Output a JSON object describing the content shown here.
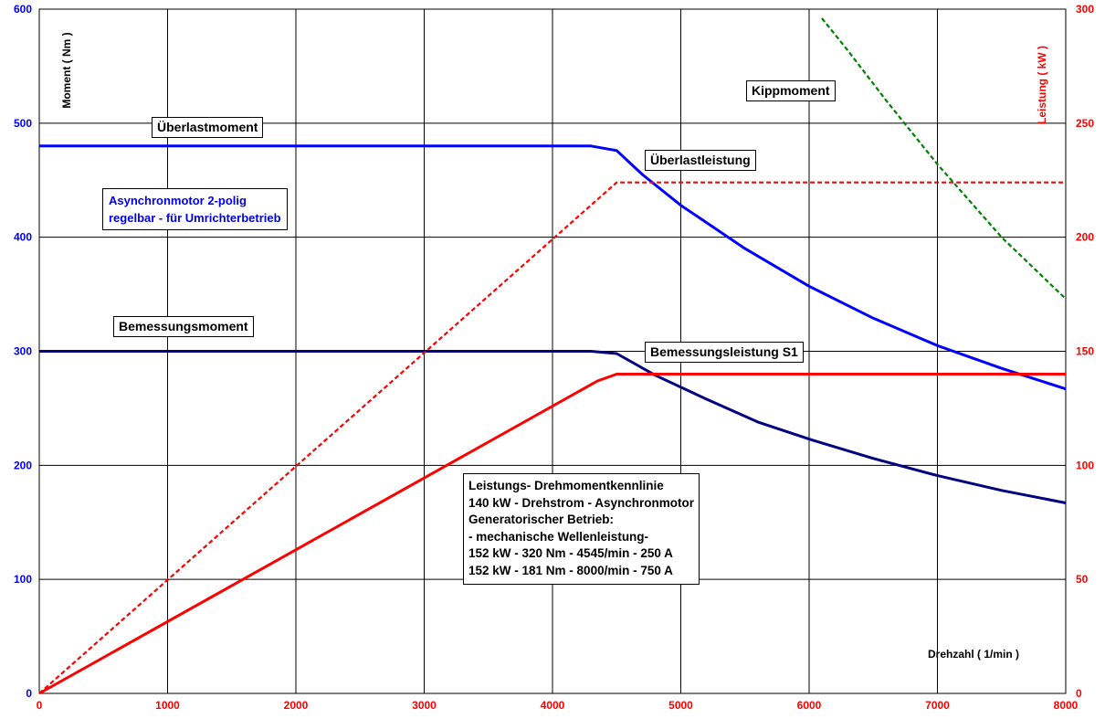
{
  "chart_data": {
    "type": "line",
    "x_axis": {
      "label": "Drehzahl ( 1/min )",
      "range": [
        0,
        8000
      ],
      "ticks": [
        0,
        1000,
        2000,
        3000,
        4000,
        5000,
        6000,
        7000,
        8000
      ]
    },
    "y_axis_left": {
      "label": "Moment ( Nm )",
      "range": [
        0,
        600
      ],
      "ticks": [
        0,
        100,
        200,
        300,
        400,
        500,
        600
      ]
    },
    "y_axis_right": {
      "label": "Leistung ( kW )",
      "range": [
        0,
        300
      ],
      "ticks": [
        0,
        50,
        100,
        150,
        200,
        250,
        300
      ]
    },
    "grid": true,
    "series": [
      {
        "name": "Überlastmoment",
        "axis": "left",
        "color": "#0000ff",
        "style": "solid",
        "x": [
          0,
          4300,
          4500,
          4700,
          5000,
          5500,
          6000,
          6500,
          7000,
          7500,
          8000
        ],
        "y": [
          480,
          480,
          476,
          455,
          428,
          390,
          357,
          329,
          305,
          285,
          267
        ]
      },
      {
        "name": "Bemessungsmoment",
        "axis": "left",
        "color": "#000080",
        "style": "solid",
        "x": [
          0,
          4300,
          4500,
          4800,
          5200,
          5600,
          6000,
          6500,
          7000,
          7500,
          8000
        ],
        "y": [
          300,
          300,
          298,
          279,
          258,
          238,
          223,
          206,
          191,
          178,
          167
        ]
      },
      {
        "name": "Überlastleistung",
        "axis": "right",
        "color": "#ff0000",
        "style": "dashed",
        "x": [
          0,
          4500,
          8000
        ],
        "y": [
          0,
          224,
          224
        ]
      },
      {
        "name": "Bemessungsleistung S1",
        "axis": "right",
        "color": "#ff0000",
        "style": "solid",
        "x": [
          0,
          4350,
          4500,
          8000
        ],
        "y": [
          0,
          137,
          140,
          140
        ]
      },
      {
        "name": "Kippmoment",
        "axis": "right",
        "color": "#008000",
        "style": "dashed",
        "x": [
          6100,
          6300,
          6600,
          7000,
          7500,
          8000
        ],
        "y": [
          296,
          282,
          260,
          232,
          200,
          173
        ]
      }
    ],
    "annotations": [
      {
        "id": "ueberlastmoment",
        "lines": [
          "Überlastmoment"
        ]
      },
      {
        "id": "asynchronmotor",
        "color": "#0000ee",
        "lines": [
          "Asynchronmotor 2-polig",
          "regelbar - für Umrichterbetrieb"
        ]
      },
      {
        "id": "bemessungsmoment",
        "lines": [
          "Bemessungsmoment"
        ]
      },
      {
        "id": "ueberlastleistung",
        "lines": [
          "Überlastleistung"
        ]
      },
      {
        "id": "bemessungsleistung",
        "lines": [
          "Bemessungsleistung S1"
        ]
      },
      {
        "id": "kippmoment",
        "lines": [
          "Kippmoment"
        ]
      },
      {
        "id": "info",
        "lines": [
          "Leistungs- Drehmomentkennlinie",
          "140 kW - Drehstrom - Asynchronmotor",
          "Generatorischer Betrieb:",
          "- mechanische Wellenleistung-",
          "152 kW - 320 Nm - 4545/min - 250 A",
          "152 kW - 181 Nm - 8000/min - 750 A"
        ]
      }
    ],
    "colors": {
      "left_axis": "#0000ff",
      "right_axis": "#ff0000",
      "grid": "#000000"
    }
  }
}
